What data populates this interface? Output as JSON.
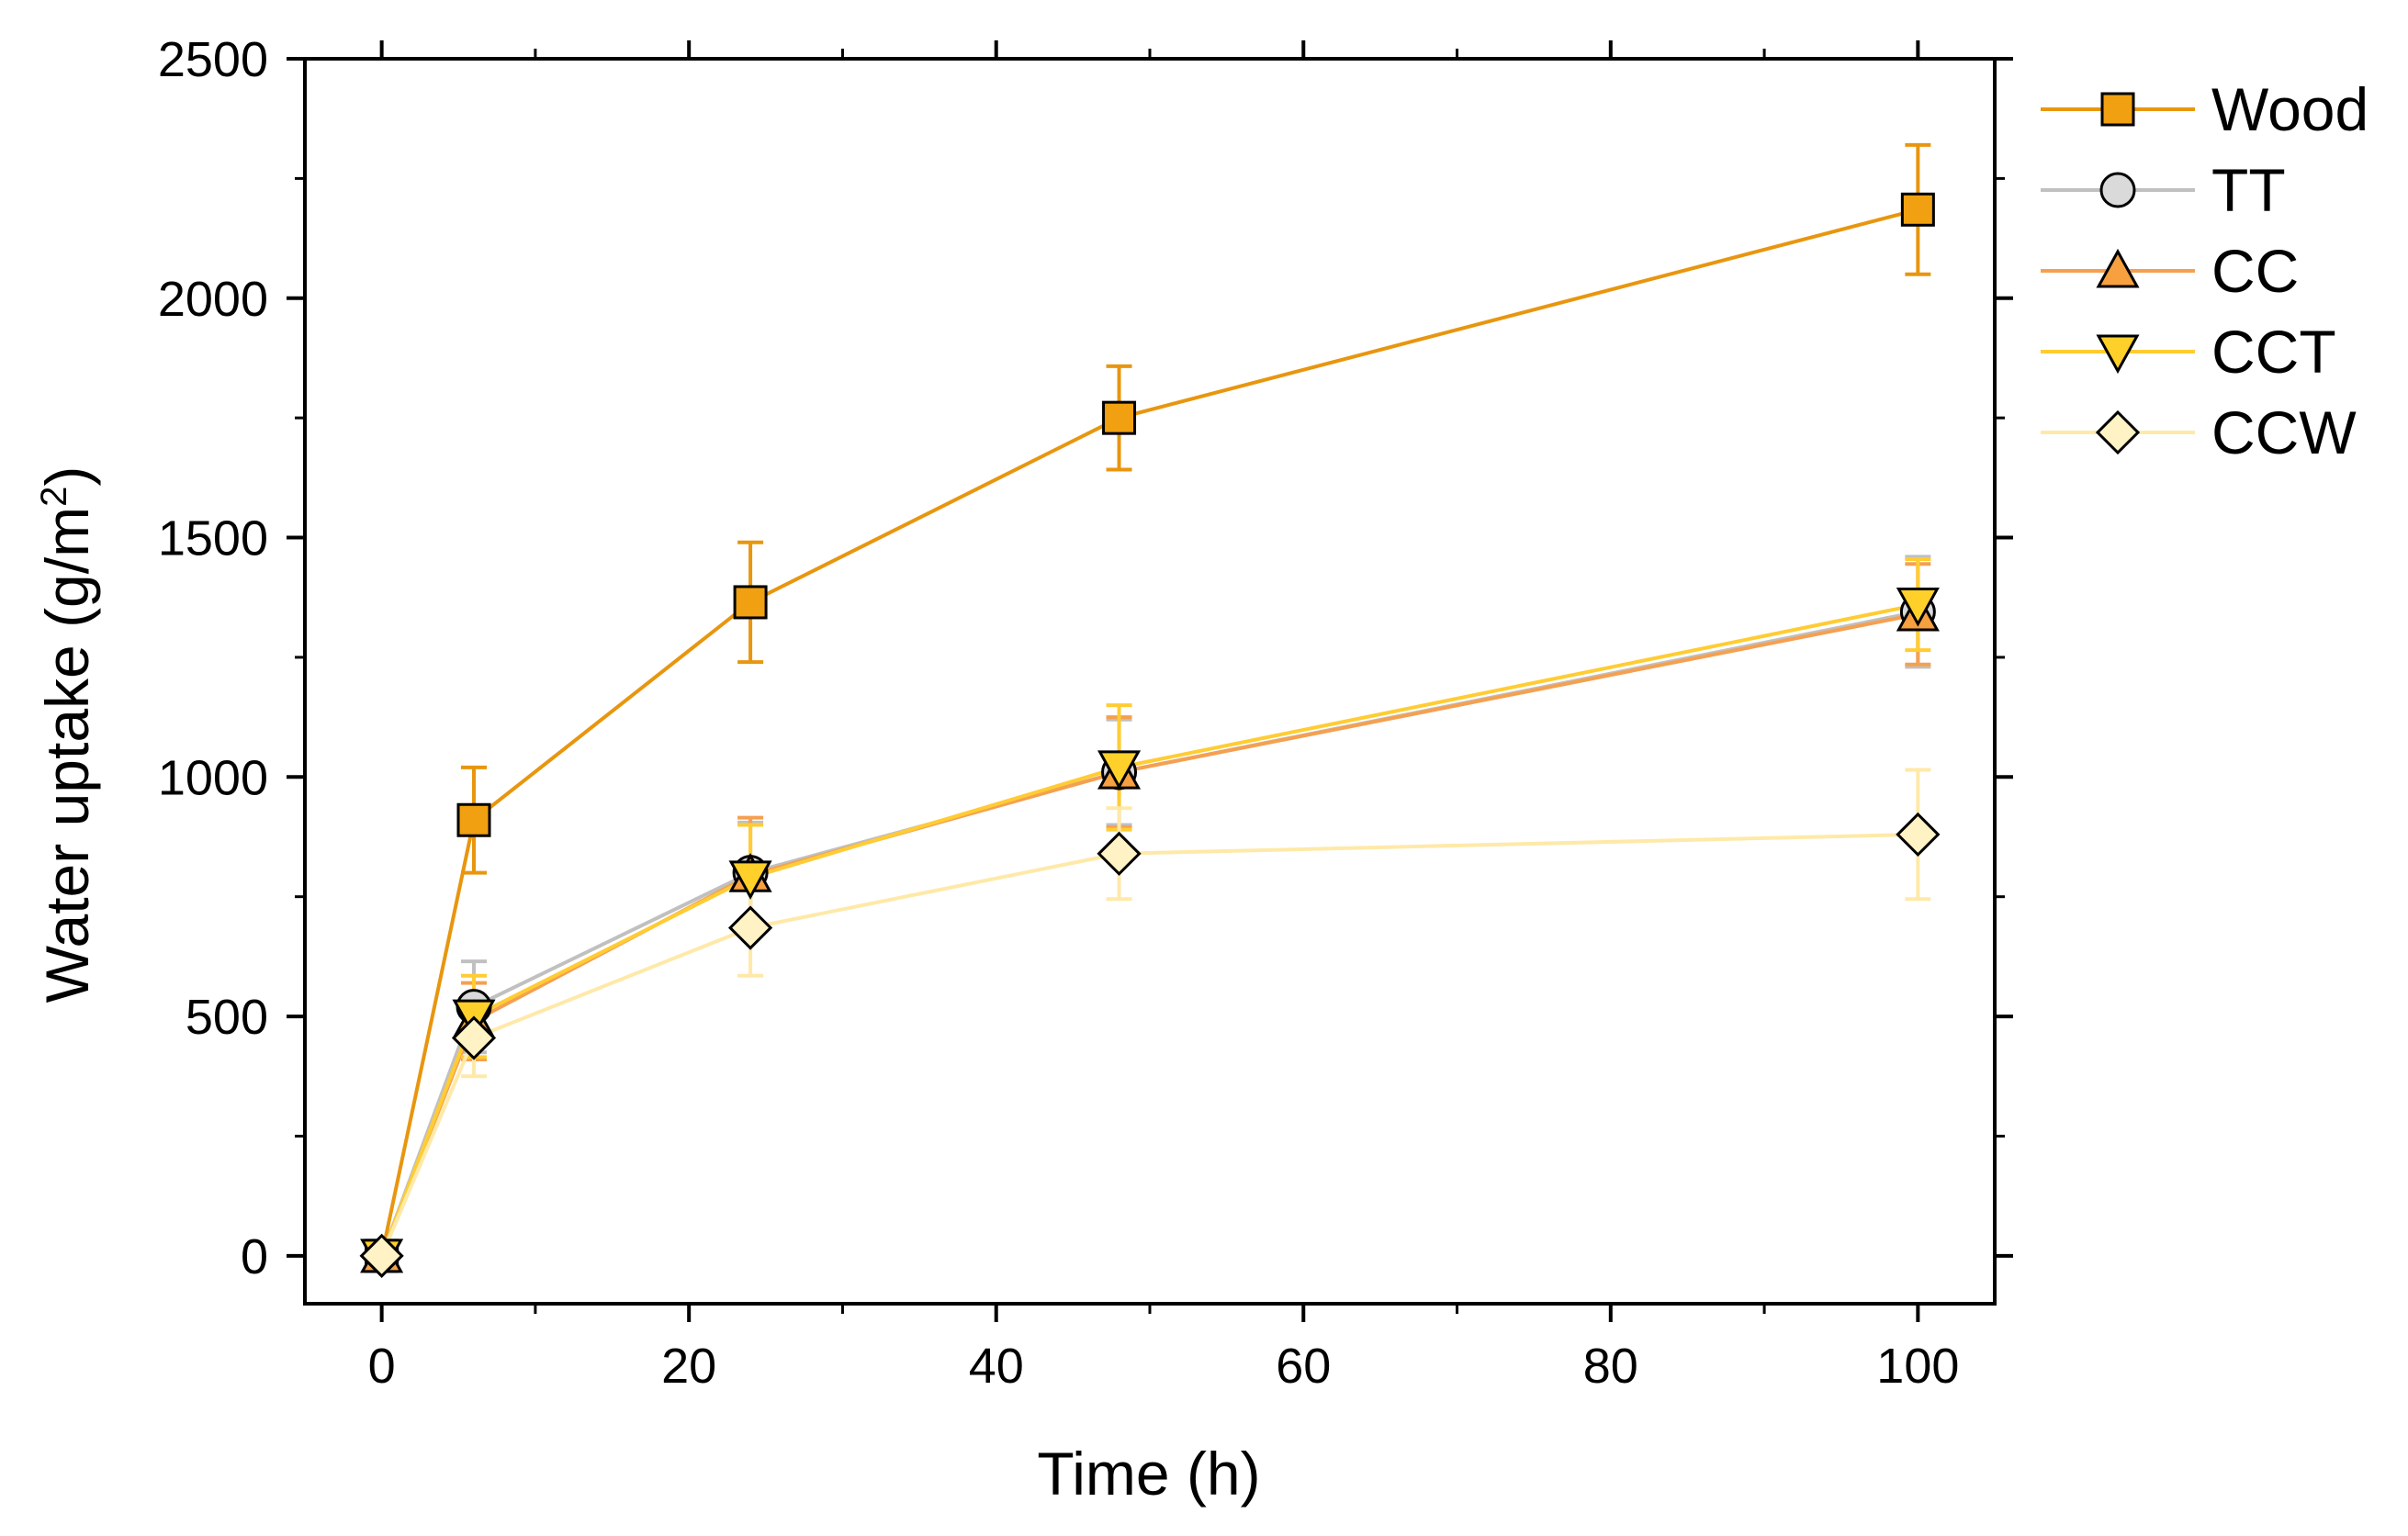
{
  "chart_data": {
    "type": "line",
    "title": "",
    "xlabel": "Time (h)",
    "ylabel": "Water uptake (g/m",
    "ylabel_superscript": "2",
    "ylabel_close": ")",
    "xlim": [
      -5,
      105
    ],
    "ylim": [
      -100,
      2500
    ],
    "xticks": [
      0,
      20,
      40,
      60,
      80,
      100
    ],
    "yticks": [
      0,
      500,
      1000,
      1500,
      2000,
      2500
    ],
    "x": [
      0,
      6,
      24,
      48,
      100
    ],
    "legend_position": "right",
    "series": [
      {
        "name": "Wood",
        "marker": "square",
        "line_color": "#E8960F",
        "fill_color": "#F0A010",
        "values": [
          0,
          910,
          1365,
          1750,
          2185
        ],
        "errors": [
          0,
          110,
          125,
          108,
          135
        ]
      },
      {
        "name": "TT",
        "marker": "circle",
        "line_color": "#C0C0C0",
        "fill_color": "#DADADA",
        "values": [
          0,
          520,
          800,
          1010,
          1345
        ],
        "errors": [
          0,
          95,
          105,
          110,
          115
        ]
      },
      {
        "name": "CC",
        "marker": "triangle-up",
        "line_color": "#F5A050",
        "fill_color": "#F7A040",
        "values": [
          0,
          490,
          795,
          1010,
          1340
        ],
        "errors": [
          0,
          80,
          120,
          115,
          105
        ]
      },
      {
        "name": "CCT",
        "marker": "triangle-down",
        "line_color": "#FFCC33",
        "fill_color": "#FFD02A",
        "values": [
          0,
          500,
          790,
          1020,
          1360
        ],
        "errors": [
          0,
          85,
          110,
          130,
          95
        ]
      },
      {
        "name": "CCW",
        "marker": "diamond",
        "line_color": "#FFE9A8",
        "fill_color": "#FFF2C4",
        "values": [
          0,
          455,
          685,
          840,
          880
        ],
        "errors": [
          0,
          80,
          100,
          95,
          135
        ]
      }
    ]
  }
}
